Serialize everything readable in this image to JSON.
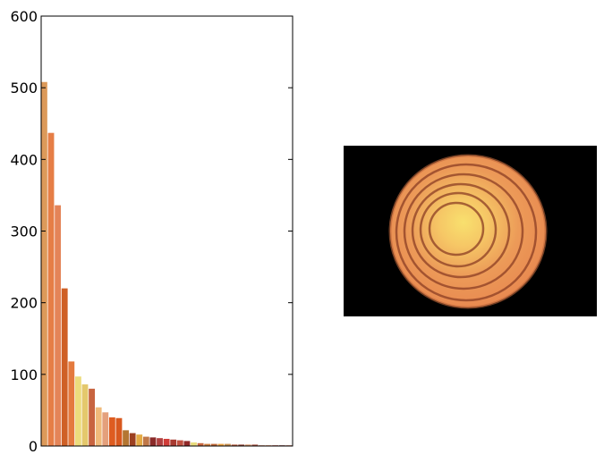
{
  "chart_data": {
    "type": "bar",
    "title": "",
    "xlabel": "",
    "ylabel": "",
    "ylim": [
      0,
      600
    ],
    "yticks": [
      0,
      100,
      200,
      300,
      400,
      500,
      600
    ],
    "grid": false,
    "legend": "none",
    "bars": [
      {
        "value": 508,
        "color": "#dc9a5a"
      },
      {
        "value": 437,
        "color": "#e67e46"
      },
      {
        "value": 336,
        "color": "#e48458"
      },
      {
        "value": 220,
        "color": "#cf6026"
      },
      {
        "value": 118,
        "color": "#e47a3e"
      },
      {
        "value": 97,
        "color": "#ecdc7c"
      },
      {
        "value": 86,
        "color": "#e4c86c"
      },
      {
        "value": 80,
        "color": "#c86440"
      },
      {
        "value": 54,
        "color": "#f0ba7a"
      },
      {
        "value": 47,
        "color": "#e4a07c"
      },
      {
        "value": 40,
        "color": "#de5c20"
      },
      {
        "value": 39,
        "color": "#d8581e"
      },
      {
        "value": 22,
        "color": "#b47632"
      },
      {
        "value": 18,
        "color": "#9c4020"
      },
      {
        "value": 16,
        "color": "#e4aa44"
      },
      {
        "value": 13,
        "color": "#c07848"
      },
      {
        "value": 12,
        "color": "#8a2a28"
      },
      {
        "value": 11,
        "color": "#b04040"
      },
      {
        "value": 10,
        "color": "#d03c38"
      },
      {
        "value": 9,
        "color": "#a83a30"
      },
      {
        "value": 8,
        "color": "#c05040"
      },
      {
        "value": 7,
        "color": "#902828"
      },
      {
        "value": 5,
        "color": "#e8dc7c"
      },
      {
        "value": 4,
        "color": "#c86840"
      },
      {
        "value": 3,
        "color": "#d08040"
      },
      {
        "value": 3,
        "color": "#c06838"
      },
      {
        "value": 3,
        "color": "#e8a040"
      },
      {
        "value": 3,
        "color": "#c89050"
      },
      {
        "value": 2,
        "color": "#b85838"
      },
      {
        "value": 2,
        "color": "#904030"
      },
      {
        "value": 2,
        "color": "#d89060"
      },
      {
        "value": 2,
        "color": "#a85040"
      },
      {
        "value": 1,
        "color": "#c87050"
      },
      {
        "value": 1,
        "color": "#e07848"
      },
      {
        "value": 1,
        "color": "#b03c2c"
      },
      {
        "value": 1,
        "color": "#80302c"
      },
      {
        "value": 1,
        "color": "#c05c40"
      }
    ]
  },
  "image_panel": {
    "subject": "onion-cross-section-photo",
    "background_color": "#000000",
    "outer_color": "#e8874f",
    "inner_color": "#f8e06e",
    "ring_color": "#8c3e24"
  }
}
